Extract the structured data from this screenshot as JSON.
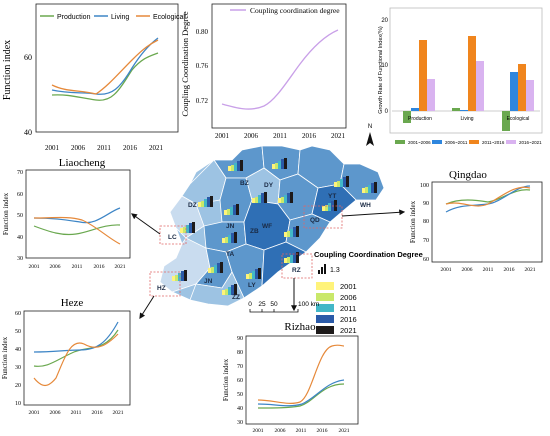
{
  "colors": {
    "production": "#6aa84f",
    "living": "#3d85c6",
    "ecological": "#e6893a",
    "coupling": "#c9a0e8",
    "bar_2001": "#6aa84f",
    "bar_2006": "#2e86de",
    "bar_2011": "#f0851d",
    "bar_2016": "#d9b3f0",
    "map_dark": "#2f6fb5",
    "map_mid": "#5d97cc",
    "map_light": "#9dc3e3",
    "map_pale": "#c9dcef"
  },
  "top_left": {
    "ylabel": "Function index",
    "legend": [
      "Production",
      "Living",
      "Ecological"
    ],
    "x_ticks": [
      "2001",
      "2006",
      "2011",
      "2016",
      "2021"
    ],
    "y_ticks": [
      "40",
      "60"
    ]
  },
  "top_mid": {
    "legend": "Coupling coordination degree",
    "ylabel": "Coupling Coordination Degree",
    "x_ticks": [
      "2001",
      "2006",
      "2011",
      "2016",
      "2021"
    ],
    "y_ticks": [
      "0.80",
      "0.76",
      "0.72"
    ]
  },
  "top_right": {
    "ylabel": "Growth Rate of Functional Index(%)",
    "categories": [
      "Production",
      "Living",
      "Ecological"
    ],
    "y_ticks": [
      "20",
      "10",
      "0"
    ],
    "legend": [
      "2001~2006",
      "2006~2011",
      "2011~2016",
      "2016~2021"
    ]
  },
  "liaocheng": {
    "title": "Liaocheng",
    "ylabel": "Function index",
    "x_ticks": [
      "2001",
      "2006",
      "2011",
      "2016",
      "2021"
    ],
    "y_ticks": [
      "70",
      "60",
      "50",
      "40",
      "30"
    ]
  },
  "qingdao": {
    "title": "Qingdao",
    "ylabel": "Function index",
    "x_ticks": [
      "2001",
      "2006",
      "2011",
      "2016",
      "2021"
    ],
    "y_ticks": [
      "100",
      "90",
      "80",
      "70",
      "60"
    ]
  },
  "heze": {
    "title": "Heze",
    "ylabel": "Function index",
    "x_ticks": [
      "2001",
      "2006",
      "2011",
      "2016",
      "2021"
    ],
    "y_ticks": [
      "60",
      "50",
      "40",
      "30",
      "20",
      "10"
    ]
  },
  "rizhao": {
    "title": "Rizhao",
    "ylabel": "Function index",
    "x_ticks": [
      "2001",
      "2006",
      "2011",
      "2016",
      "2021"
    ],
    "y_ticks": [
      "90",
      "80",
      "70",
      "60",
      "50",
      "40",
      "30"
    ]
  },
  "map": {
    "city_labels": [
      "BZ",
      "DY",
      "DZ",
      "YT",
      "WH",
      "LC",
      "JN",
      "ZB",
      "WF",
      "QD",
      "TA",
      "RZ",
      "HZ",
      "JN",
      "ZZ",
      "LY"
    ],
    "north_label": "N",
    "legend_title": "Coupling Coordination Degree",
    "legend_scale": "1.3",
    "legend_years": [
      "2001",
      "2006",
      "2011",
      "2016",
      "2021"
    ],
    "legend_year_colors": [
      "#fff37a",
      "#c9e86a",
      "#42b7c7",
      "#2a5aa8",
      "#1d1a1a"
    ],
    "scale_ticks": [
      "0",
      "25",
      "50",
      "100 km"
    ]
  }
}
